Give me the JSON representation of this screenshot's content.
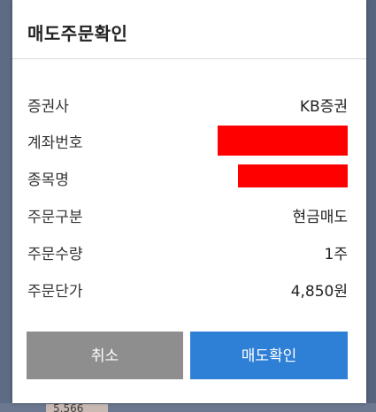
{
  "dialog": {
    "title": "매도주문확인",
    "rows": [
      {
        "label": "증권사",
        "value": "KB증권"
      },
      {
        "label": "계좌번호",
        "value": ""
      },
      {
        "label": "종목명",
        "value": ""
      },
      {
        "label": "주문구분",
        "value": "현금매도"
      },
      {
        "label": "주문수량",
        "value": "1주"
      },
      {
        "label": "주문단가",
        "value": "4,850원"
      }
    ],
    "buttons": {
      "cancel_label": "취소",
      "confirm_label": "매도확인"
    }
  },
  "background": {
    "partial_price": "5,566"
  },
  "colors": {
    "confirm_button": "#2e7fd6",
    "cancel_button": "#8e8e8e",
    "redaction": "#ff0000"
  }
}
